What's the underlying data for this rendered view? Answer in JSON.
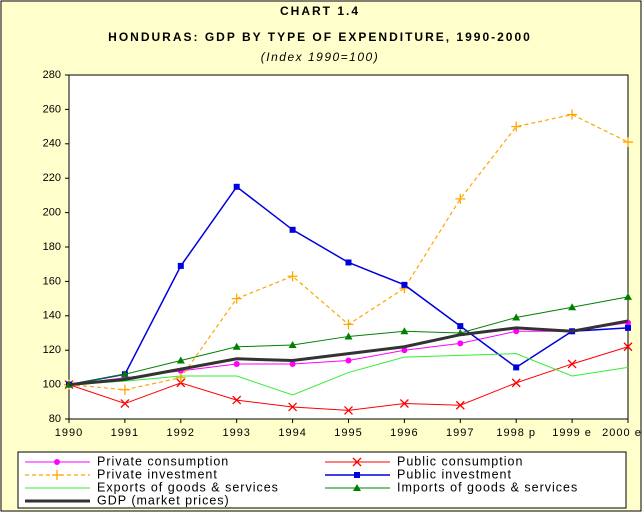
{
  "chart_data": {
    "type": "line",
    "title": "CHART 1.4",
    "subtitle": "HONDURAS: GDP BY TYPE OF EXPENDITURE, 1990-2000",
    "note": "(Index 1990=100)",
    "categories": [
      "1990",
      "1991",
      "1992",
      "1993",
      "1994",
      "1995",
      "1996",
      "1997",
      "1998 p",
      "1999 e",
      "2000 e"
    ],
    "ylim": [
      80,
      280
    ],
    "yticks": [
      80,
      100,
      120,
      140,
      160,
      180,
      200,
      220,
      240,
      260,
      280
    ],
    "series": [
      {
        "name": "Private consumption",
        "color": "#ff00ff",
        "marker": "circle",
        "dash": "solid",
        "values": [
          100,
          104,
          108,
          112,
          112,
          114,
          120,
          124,
          131,
          131,
          136
        ]
      },
      {
        "name": "Public consumption",
        "color": "#ff0000",
        "marker": "x",
        "dash": "solid",
        "values": [
          100,
          89,
          101,
          91,
          87,
          85,
          89,
          88,
          101,
          112,
          122
        ]
      },
      {
        "name": "Private investment",
        "color": "#ffa500",
        "marker": "plus",
        "dash": "dashed",
        "values": [
          100,
          97,
          104,
          150,
          163,
          135,
          156,
          208,
          250,
          257,
          241
        ]
      },
      {
        "name": "Public investment",
        "color": "#0000dd",
        "marker": "square",
        "dash": "solid",
        "values": [
          100,
          106,
          169,
          215,
          190,
          171,
          158,
          134,
          110,
          131,
          133
        ]
      },
      {
        "name": "Exports of goods & services",
        "color": "#33ee33",
        "marker": "none",
        "dash": "solid",
        "values": [
          100,
          102,
          105,
          105,
          94,
          107,
          116,
          117,
          118,
          105,
          110
        ]
      },
      {
        "name": "Imports of goods & services",
        "color": "#008000",
        "marker": "triangle",
        "dash": "solid",
        "values": [
          100,
          106,
          114,
          122,
          123,
          128,
          131,
          130,
          139,
          145,
          151
        ]
      },
      {
        "name": "GDP (market prices)",
        "color": "#333333",
        "marker": "none",
        "dash": "solid",
        "values": [
          100,
          103,
          109,
          115,
          114,
          118,
          122,
          129,
          133,
          131,
          137
        ]
      }
    ]
  }
}
